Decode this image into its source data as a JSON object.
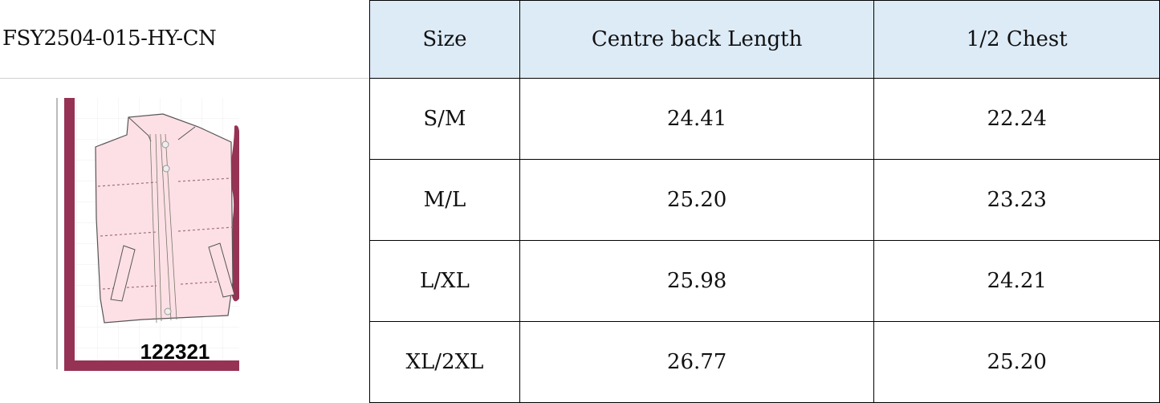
{
  "product_code": "FSY2504-015-HY-CN",
  "image": {
    "label": "122321",
    "colors": {
      "vest": "#fde0e6",
      "frame": "#963355"
    }
  },
  "table": {
    "header_bg": "#ddebf7",
    "headers": [
      "Size",
      "Centre back Length",
      "1/2 Chest"
    ],
    "rows": [
      [
        "S/M",
        "24.41",
        "22.24"
      ],
      [
        "M/L",
        "25.20",
        "23.23"
      ],
      [
        "L/XL",
        "25.98",
        "24.21"
      ],
      [
        "XL/2XL",
        "26.77",
        "25.20"
      ]
    ]
  }
}
